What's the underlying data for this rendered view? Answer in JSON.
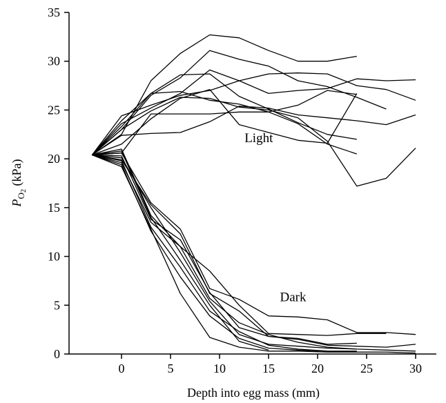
{
  "chart_data": {
    "type": "line",
    "xlabel": "Depth into egg mass (mm)",
    "ylabel_main": "P",
    "ylabel_sub": "O",
    "ylabel_sub2": "2",
    "ylabel_unit": " (kPa)",
    "xlim": [
      -4,
      30
    ],
    "ylim": [
      0,
      35
    ],
    "x_ticks": [
      0,
      5,
      10,
      15,
      20,
      25,
      30
    ],
    "y_ticks": [
      0,
      5,
      10,
      15,
      20,
      25,
      30,
      35
    ],
    "annotations": [
      {
        "text": "Light",
        "x": 14,
        "y": 21.7
      },
      {
        "text": "Dark",
        "x": 17.5,
        "y": 5.4
      }
    ],
    "line_color": "#000000",
    "grid": false,
    "series": [
      {
        "group": "Light",
        "x": [
          -3,
          0,
          3,
          6,
          9,
          12,
          15,
          18,
          21,
          24
        ],
        "y": [
          20.4,
          22.5,
          28.0,
          30.8,
          32.7,
          32.4,
          31.1,
          30.0,
          30.0,
          30.5
        ]
      },
      {
        "group": "Light",
        "x": [
          -3,
          0,
          3,
          6,
          9,
          12,
          15,
          18,
          21,
          24,
          27
        ],
        "y": [
          20.4,
          23.0,
          26.5,
          28.3,
          31.1,
          30.2,
          29.5,
          28.0,
          27.4,
          26.3,
          25.1
        ]
      },
      {
        "group": "Light",
        "x": [
          -3,
          0,
          3,
          6,
          9,
          12,
          15,
          18,
          21,
          24
        ],
        "y": [
          20.4,
          23.3,
          26.7,
          28.6,
          28.7,
          26.4,
          25.1,
          23.7,
          22.5,
          22.0
        ]
      },
      {
        "group": "Light",
        "x": [
          -3,
          0,
          3,
          6,
          9,
          12,
          15,
          18,
          21,
          24,
          27,
          30
        ],
        "y": [
          20.4,
          23.6,
          25.2,
          26.7,
          29.1,
          28.0,
          26.7,
          27.0,
          27.2,
          28.2,
          28.0,
          28.1
        ]
      },
      {
        "group": "Light",
        "x": [
          -3,
          0,
          3,
          6,
          9,
          12,
          15,
          18,
          21,
          24
        ],
        "y": [
          20.4,
          23.9,
          26.7,
          26.9,
          26.0,
          25.6,
          24.8,
          23.6,
          21.5,
          20.5
        ]
      },
      {
        "group": "Light",
        "x": [
          -3,
          0,
          3,
          6,
          9,
          12,
          15,
          18,
          21,
          24,
          27,
          30
        ],
        "y": [
          20.4,
          24.4,
          25.5,
          26.5,
          27.0,
          28.0,
          28.7,
          28.8,
          28.7,
          27.5,
          27.1,
          26.0
        ]
      },
      {
        "group": "Light",
        "x": [
          -3,
          0,
          3,
          6,
          9,
          12,
          15,
          18,
          21,
          24,
          27,
          30
        ],
        "y": [
          20.4,
          23.0,
          24.9,
          26.3,
          26.2,
          25.3,
          25.0,
          24.2,
          21.8,
          17.2,
          18.0,
          21.1
        ]
      },
      {
        "group": "Light",
        "x": [
          -3,
          0,
          3,
          6,
          9,
          12,
          15,
          18,
          21,
          24
        ],
        "y": [
          20.4,
          21.5,
          24.1,
          26.2,
          27.1,
          23.5,
          22.7,
          21.9,
          21.6,
          26.7
        ]
      },
      {
        "group": "Light",
        "x": [
          -3,
          0,
          3,
          6,
          9,
          12,
          15,
          18,
          21,
          24,
          27,
          30
        ],
        "y": [
          20.4,
          22.4,
          22.6,
          22.7,
          23.8,
          25.4,
          25.2,
          24.5,
          24.2,
          23.9,
          23.5,
          24.5
        ]
      },
      {
        "group": "Light",
        "x": [
          -3,
          0,
          3,
          6,
          9,
          12,
          15,
          18,
          21,
          24
        ],
        "y": [
          20.4,
          20.6,
          24.6,
          24.6,
          24.6,
          24.8,
          24.8,
          25.5,
          27.0,
          26.6
        ]
      },
      {
        "group": "Dark",
        "x": [
          -3,
          0,
          3,
          6,
          9,
          12,
          15,
          18,
          21,
          24,
          27,
          30
        ],
        "y": [
          20.4,
          20.6,
          15.5,
          12.8,
          6.7,
          5.6,
          3.9,
          3.8,
          3.5,
          2.2,
          2.2,
          2.0
        ]
      },
      {
        "group": "Dark",
        "x": [
          -3,
          0,
          3,
          6,
          9,
          12,
          15,
          18,
          21,
          24,
          27
        ],
        "y": [
          20.4,
          21.0,
          14.2,
          11.0,
          8.5,
          5.0,
          2.1,
          2.0,
          1.9,
          2.1,
          2.1
        ]
      },
      {
        "group": "Dark",
        "x": [
          -3,
          0,
          3,
          6,
          9,
          12,
          15,
          18,
          21,
          24,
          27,
          30
        ],
        "y": [
          20.4,
          19.9,
          15.3,
          12.3,
          6.2,
          4.4,
          1.8,
          1.5,
          0.9,
          0.8,
          0.7,
          1.0
        ]
      },
      {
        "group": "Dark",
        "x": [
          -3,
          0,
          3,
          6,
          9,
          12,
          15,
          18,
          21,
          24
        ],
        "y": [
          20.4,
          20.3,
          13.8,
          11.7,
          6.3,
          2.7,
          1.8,
          1.6,
          1.0,
          1.1
        ]
      },
      {
        "group": "Dark",
        "x": [
          -3,
          0,
          3,
          6,
          9,
          12,
          15,
          18,
          21,
          24,
          27,
          30
        ],
        "y": [
          20.4,
          19.6,
          13.5,
          11.0,
          5.7,
          3.2,
          2.0,
          1.2,
          0.7,
          0.5,
          0.4,
          0.3
        ]
      },
      {
        "group": "Dark",
        "x": [
          -3,
          0,
          3,
          6,
          9,
          12,
          15,
          18,
          21,
          24
        ],
        "y": [
          20.4,
          20.1,
          15.0,
          10.4,
          5.4,
          2.0,
          1.0,
          0.8,
          0.6,
          0.5
        ]
      },
      {
        "group": "Dark",
        "x": [
          -3,
          0,
          3,
          6,
          9,
          12,
          15,
          18,
          21,
          24
        ],
        "y": [
          20.4,
          19.8,
          13.0,
          8.9,
          4.4,
          2.3,
          0.9,
          0.5,
          0.3,
          0.3
        ]
      },
      {
        "group": "Dark",
        "x": [
          -3,
          0,
          3,
          6,
          9,
          12,
          15,
          18,
          21
        ],
        "y": [
          20.4,
          19.4,
          12.6,
          7.9,
          3.9,
          1.6,
          0.6,
          0.4,
          0.3
        ]
      },
      {
        "group": "Dark",
        "x": [
          -3,
          0,
          3,
          6,
          9,
          12,
          15,
          18,
          21,
          24,
          27,
          30
        ],
        "y": [
          20.4,
          19.2,
          12.8,
          6.2,
          1.7,
          0.7,
          0.3,
          0.3,
          0.2,
          0.2,
          0.2,
          0.1
        ]
      },
      {
        "group": "Dark",
        "x": [
          -3,
          0,
          3,
          6,
          9,
          12,
          15
        ],
        "y": [
          20.4,
          20.8,
          14.0,
          9.6,
          5.0,
          1.3,
          0.4
        ]
      }
    ]
  }
}
